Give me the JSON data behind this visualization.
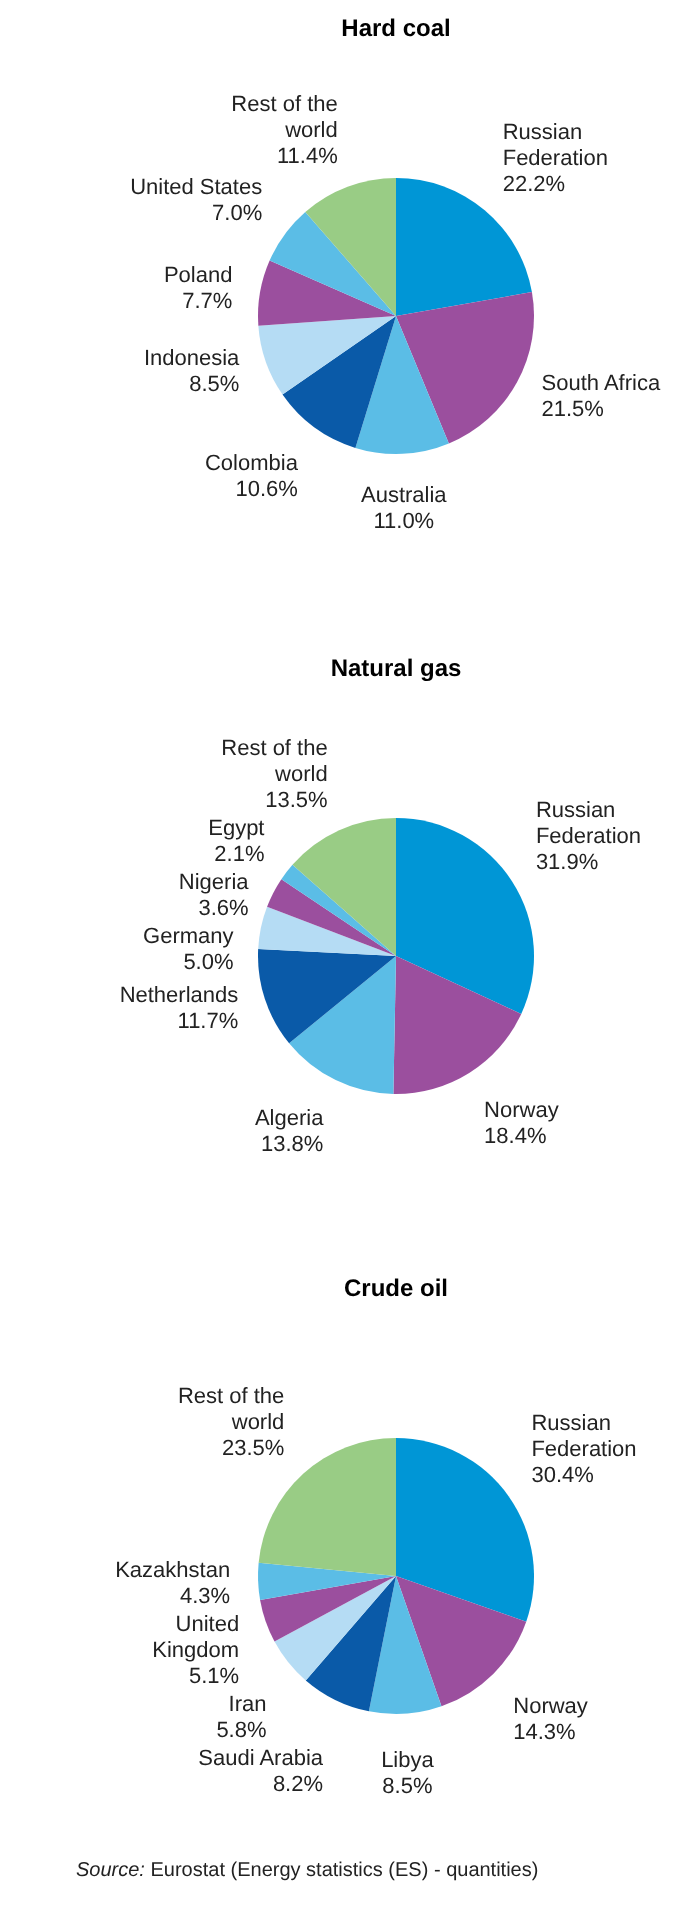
{
  "chart_data": [
    {
      "type": "pie",
      "title": "Hard coal",
      "categories": [
        "Russian Federation",
        "South Africa",
        "Australia",
        "Colombia",
        "Indonesia",
        "Poland",
        "United States",
        "Rest of the world"
      ],
      "values": [
        22.2,
        21.5,
        11.0,
        10.6,
        8.5,
        7.7,
        7.0,
        11.4
      ],
      "colors": [
        "#0096d6",
        "#9b4f9e",
        "#5bbde6",
        "#0a5aa8",
        "#b5dcf4",
        "#9b4f9e",
        "#5bbde6",
        "#99cc85"
      ],
      "value_labels": [
        "22.2%",
        "21.5%",
        "11.0%",
        "10.6%",
        "8.5%",
        "7.7%",
        "7.0%",
        "11.4%"
      ]
    },
    {
      "type": "pie",
      "title": "Natural gas",
      "categories": [
        "Russian Federation",
        "Norway",
        "Algeria",
        "Netherlands",
        "Germany",
        "Nigeria",
        "Egypt",
        "Rest of the world"
      ],
      "values": [
        31.9,
        18.4,
        13.8,
        11.7,
        5.0,
        3.6,
        2.1,
        13.5
      ],
      "colors": [
        "#0096d6",
        "#9b4f9e",
        "#5bbde6",
        "#0a5aa8",
        "#b5dcf4",
        "#9b4f9e",
        "#5bbde6",
        "#99cc85"
      ],
      "value_labels": [
        "31.9%",
        "18.4%",
        "13.8%",
        "11.7%",
        "5.0%",
        "3.6%",
        "2.1%",
        "13.5%"
      ]
    },
    {
      "type": "pie",
      "title": "Crude oil",
      "categories": [
        "Russian Federation",
        "Norway",
        "Libya",
        "Saudi Arabia",
        "Iran",
        "United Kingdom",
        "Kazakhstan",
        "Rest of the world"
      ],
      "values": [
        30.4,
        14.3,
        8.5,
        8.2,
        5.8,
        5.1,
        4.3,
        23.5
      ],
      "colors": [
        "#0096d6",
        "#9b4f9e",
        "#5bbde6",
        "#0a5aa8",
        "#b5dcf4",
        "#9b4f9e",
        "#5bbde6",
        "#99cc85"
      ],
      "value_labels": [
        "30.4%",
        "14.3%",
        "8.5%",
        "8.2%",
        "5.8%",
        "5.1%",
        "4.3%",
        "23.5%"
      ],
      "annotations": [
        "Source: Eurostat (Energy statistics (ES) - quantities)"
      ]
    }
  ]
}
